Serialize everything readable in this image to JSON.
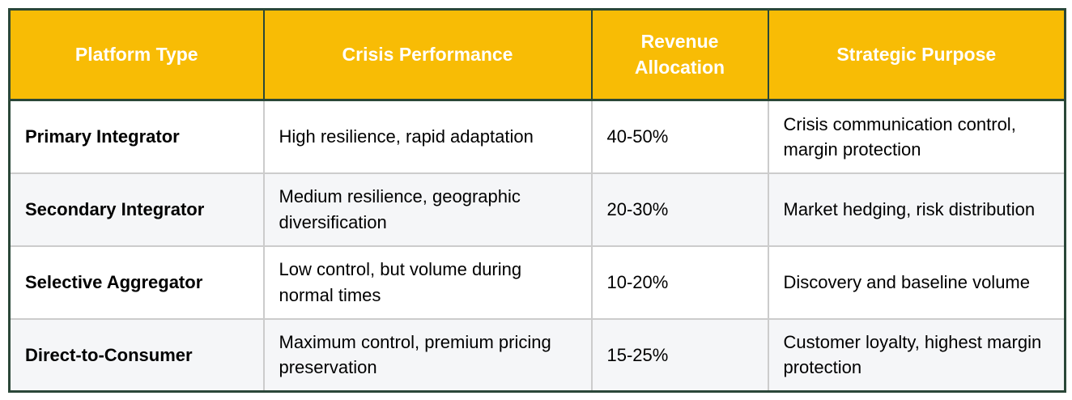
{
  "colors": {
    "header_bg": "#F8BC05",
    "header_text": "#FFFFFF",
    "outer_border": "#2A4738",
    "grid_border": "#CCCCCC",
    "row_bg": "#FFFFFF",
    "row_alt_bg": "#F5F6F8",
    "body_text": "#000000"
  },
  "table": {
    "headers": [
      "Platform Type",
      "Crisis Performance",
      "Revenue Allocation",
      "Strategic Purpose"
    ],
    "rows": [
      [
        "Primary Integrator",
        "High resilience, rapid adaptation",
        "40-50%",
        "Crisis communication control, margin protection"
      ],
      [
        "Secondary Integrator",
        "Medium resilience, geographic diversification",
        "20-30%",
        "Market hedging, risk distribution"
      ],
      [
        "Selective Aggregator",
        "Low control, but volume during normal times",
        "10-20%",
        "Discovery and baseline volume"
      ],
      [
        "Direct-to-Consumer",
        "Maximum control, premium pricing preservation",
        "15-25%",
        "Customer loyalty, highest margin protection"
      ]
    ]
  }
}
